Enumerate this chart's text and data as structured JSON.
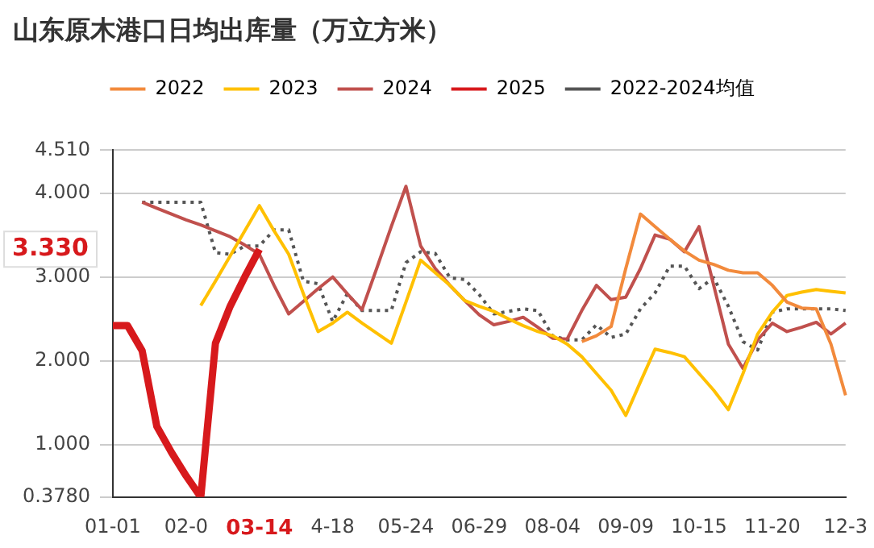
{
  "chart_data": {
    "type": "line",
    "title": "山东原木港口日均出库量（万立方米）",
    "categories": [
      "01-01",
      null,
      null,
      null,
      null,
      "02-0",
      null,
      null,
      null,
      null,
      "03-14",
      null,
      null,
      null,
      null,
      "4-18",
      null,
      null,
      null,
      null,
      "05-24",
      null,
      null,
      null,
      null,
      "06-29",
      null,
      null,
      null,
      null,
      "08-04",
      null,
      null,
      null,
      null,
      "09-09",
      null,
      null,
      null,
      null,
      "10-15",
      null,
      null,
      null,
      null,
      "11-20",
      null,
      null,
      null,
      null,
      "12-3"
    ],
    "series": [
      {
        "name": "2022",
        "color": "#f28a3c",
        "values": [
          null,
          null,
          null,
          null,
          null,
          null,
          null,
          null,
          null,
          null,
          null,
          null,
          null,
          null,
          null,
          null,
          null,
          null,
          null,
          null,
          null,
          null,
          null,
          null,
          null,
          null,
          null,
          null,
          null,
          null,
          null,
          null,
          2.23,
          2.3,
          2.41,
          3.1,
          3.75,
          3.6,
          3.45,
          3.31,
          3.2,
          3.15,
          3.08,
          3.05,
          3.05,
          2.9,
          2.7,
          2.63,
          2.62,
          2.2,
          1.59
        ]
      },
      {
        "name": "2023",
        "color": "#ffc000",
        "values": [
          null,
          null,
          null,
          null,
          null,
          null,
          2.66,
          2.95,
          3.25,
          3.55,
          3.85,
          3.55,
          3.27,
          2.8,
          2.35,
          2.45,
          2.58,
          2.45,
          2.33,
          2.21,
          2.7,
          3.2,
          3.05,
          2.9,
          2.72,
          2.65,
          2.59,
          2.5,
          2.42,
          2.35,
          2.3,
          2.2,
          2.05,
          1.85,
          1.65,
          1.35,
          1.75,
          2.14,
          2.1,
          2.05,
          1.85,
          1.65,
          1.42,
          1.85,
          2.32,
          2.58,
          2.78,
          2.82,
          2.85,
          2.83,
          2.81
        ]
      },
      {
        "name": "2024",
        "color": "#c0504d",
        "values": [
          null,
          null,
          3.89,
          3.82,
          3.75,
          3.68,
          3.62,
          3.55,
          3.48,
          3.38,
          3.27,
          2.9,
          2.56,
          2.71,
          2.86,
          3.0,
          2.8,
          2.61,
          3.1,
          3.6,
          4.08,
          3.37,
          3.1,
          2.9,
          2.72,
          2.55,
          2.43,
          2.47,
          2.52,
          2.4,
          2.27,
          2.26,
          2.6,
          2.9,
          2.73,
          2.76,
          3.1,
          3.5,
          3.45,
          3.3,
          3.6,
          2.9,
          2.2,
          1.91,
          2.25,
          2.45,
          2.35,
          2.4,
          2.46,
          2.32,
          2.45
        ]
      },
      {
        "name": "2025",
        "color": "#d7191c",
        "values": [
          2.42,
          2.42,
          2.12,
          1.22,
          0.91,
          0.63,
          0.378,
          2.21,
          2.65,
          3.0,
          3.33,
          null,
          null,
          null,
          null,
          null,
          null,
          null,
          null,
          null,
          null,
          null,
          null,
          null,
          null,
          null,
          null,
          null,
          null,
          null,
          null,
          null,
          null,
          null,
          null,
          null,
          null,
          null,
          null,
          null,
          null,
          null,
          null,
          null,
          null,
          null,
          null,
          null,
          null,
          null,
          null
        ]
      },
      {
        "name": "2022-2024均值",
        "color": "#555555",
        "line_style": "dotted",
        "values": [
          null,
          null,
          3.89,
          3.89,
          3.89,
          3.89,
          3.89,
          3.29,
          3.27,
          3.37,
          3.37,
          3.56,
          3.56,
          2.95,
          2.92,
          2.47,
          2.8,
          2.6,
          2.6,
          2.6,
          3.17,
          3.3,
          3.28,
          2.99,
          2.97,
          2.79,
          2.56,
          2.59,
          2.62,
          2.6,
          2.3,
          2.25,
          2.25,
          2.43,
          2.28,
          2.32,
          2.62,
          2.81,
          3.13,
          3.13,
          2.86,
          2.99,
          2.65,
          2.23,
          2.13,
          2.58,
          2.62,
          2.62,
          2.62,
          2.62,
          2.6
        ]
      }
    ],
    "ylim": [
      0.378,
      4.51
    ],
    "yticks": [
      {
        "value": 0.378,
        "label": "0.3780"
      },
      {
        "value": 1,
        "label": "1.000"
      },
      {
        "value": 2,
        "label": "2.000"
      },
      {
        "value": 3,
        "label": "3.000"
      },
      {
        "value": 3.33,
        "label": "3.330"
      },
      {
        "value": 4,
        "label": "4.000"
      },
      {
        "value": 4.51,
        "label": "4.510"
      }
    ],
    "grid": "y",
    "legend": "top",
    "marker": "none",
    "line_style": "solid"
  }
}
